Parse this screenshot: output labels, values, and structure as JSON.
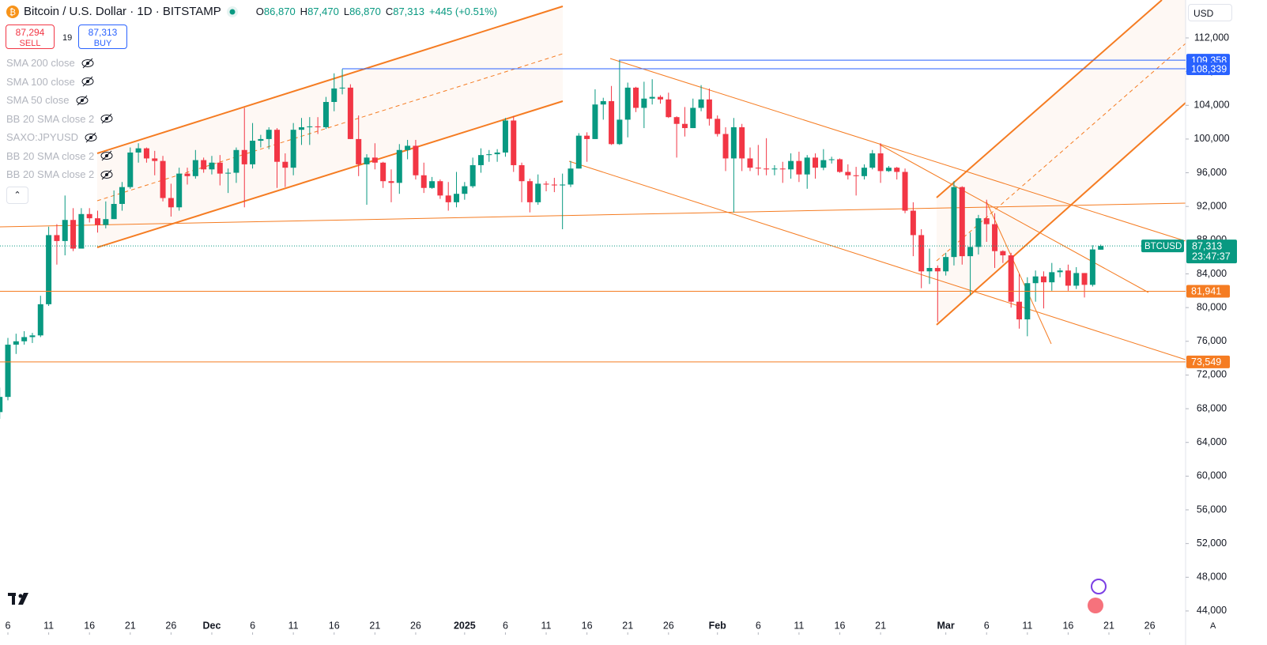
{
  "header": {
    "title": "Bitcoin / U.S. Dollar · 1D · BITSTAMP",
    "ohlc": [
      {
        "label": "O",
        "value": "86,870"
      },
      {
        "label": "H",
        "value": "87,470"
      },
      {
        "label": "L",
        "value": "86,870"
      },
      {
        "label": "C",
        "value": "87,313"
      }
    ],
    "change": "+445 (+0.51%)",
    "sell": {
      "price": "87,294",
      "label": "SELL"
    },
    "spread": "19",
    "buy": {
      "price": "87,313",
      "label": "BUY"
    },
    "currency": "USD",
    "scale_mode": "A"
  },
  "indicators": [
    "SMA 200 close",
    "SMA 100 close",
    "SMA 50 close",
    "BB 20 SMA close 2",
    "SAXO:JPYUSD",
    "BB 20 SMA close 2",
    "BB 20 SMA close 2"
  ],
  "chart_data": {
    "type": "candlestick",
    "up_color": "#089981",
    "down_color": "#f23645",
    "ylim": [
      42400,
      116500
    ],
    "yticks": [
      {
        "value": 44000,
        "label": "44,000"
      },
      {
        "value": 48000,
        "label": "48,000"
      },
      {
        "value": 52000,
        "label": "52,000"
      },
      {
        "value": 56000,
        "label": "56,000"
      },
      {
        "value": 60000,
        "label": "60,000"
      },
      {
        "value": 64000,
        "label": "64,000"
      },
      {
        "value": 68000,
        "label": "68,000"
      },
      {
        "value": 72000,
        "label": "72,000"
      },
      {
        "value": 76000,
        "label": "76,000"
      },
      {
        "value": 80000,
        "label": "80,000"
      },
      {
        "value": 84000,
        "label": "84,000"
      },
      {
        "value": 88000,
        "label": "88,000"
      },
      {
        "value": 92000,
        "label": "92,000"
      },
      {
        "value": 96000,
        "label": "96,000"
      },
      {
        "value": 100000,
        "label": "100,000"
      },
      {
        "value": 104000,
        "label": "104,000"
      },
      {
        "value": 108000,
        "label": "108,000"
      },
      {
        "value": 112000,
        "label": "112,000"
      }
    ],
    "xlim": [
      0.03,
      145.4
    ],
    "xticks": [
      {
        "value": 1,
        "label": "6"
      },
      {
        "value": 6,
        "label": "11"
      },
      {
        "value": 11,
        "label": "16"
      },
      {
        "value": 16,
        "label": "21"
      },
      {
        "value": 21,
        "label": "26"
      },
      {
        "value": 26,
        "label": "Dec"
      },
      {
        "value": 31,
        "label": "6"
      },
      {
        "value": 36,
        "label": "11"
      },
      {
        "value": 41,
        "label": "16"
      },
      {
        "value": 46,
        "label": "21"
      },
      {
        "value": 51,
        "label": "26"
      },
      {
        "value": 57,
        "label": "2025"
      },
      {
        "value": 62,
        "label": "6"
      },
      {
        "value": 67,
        "label": "11"
      },
      {
        "value": 72,
        "label": "16"
      },
      {
        "value": 77,
        "label": "21"
      },
      {
        "value": 82,
        "label": "26"
      },
      {
        "value": 88,
        "label": "Feb"
      },
      {
        "value": 93,
        "label": "6"
      },
      {
        "value": 98,
        "label": "11"
      },
      {
        "value": 103,
        "label": "16"
      },
      {
        "value": 108,
        "label": "21"
      },
      {
        "value": 116,
        "label": "Mar"
      },
      {
        "value": 121,
        "label": "6"
      },
      {
        "value": 126,
        "label": "11"
      },
      {
        "value": 131,
        "label": "16"
      },
      {
        "value": 136,
        "label": "21"
      },
      {
        "value": 141,
        "label": "26"
      }
    ],
    "open": [
      67600,
      69400,
      75600,
      76000,
      76500,
      76700,
      80400,
      88600,
      87900,
      90400,
      87000,
      91100,
      90600,
      89800,
      90500,
      92300,
      94300,
      98400,
      98900,
      97700,
      97400,
      93000,
      91900,
      95900,
      95600,
      97500,
      96400,
      97200,
      95900,
      96000,
      98700,
      97000,
      99800,
      100000,
      101100,
      97300,
      96600,
      101100,
      101400,
      101500,
      101400,
      104400,
      106000,
      106100,
      100000,
      97000,
      97800,
      97200,
      95000,
      94800,
      98700,
      99200,
      95700,
      94200,
      95000,
      93300,
      92500,
      93500,
      94400,
      96900,
      98100,
      98200,
      98400,
      102200,
      96900,
      95000,
      92500,
      94700,
      94600,
      94500,
      94600,
      96500,
      100400,
      100000,
      104100,
      104500,
      99400,
      102300,
      106100,
      103700,
      104800,
      105000,
      104700,
      102600,
      101800,
      101300,
      103700,
      104700,
      102400,
      100600,
      97700,
      101400,
      97700,
      96600,
      96500,
      96400,
      96500,
      96400,
      97400,
      95800,
      97800,
      96600,
      97500,
      97600,
      96100,
      95700,
      95600,
      96600,
      98300,
      96200,
      96600,
      96100,
      91500,
      88600,
      84300,
      84700,
      84300,
      86000,
      94300,
      86100,
      87200,
      90600,
      89900,
      86700,
      86200,
      80700,
      78600,
      82900,
      83700,
      83000,
      84200,
      84400,
      82600,
      84100,
      82700,
      86870
    ],
    "high": [
      70500,
      76400,
      76900,
      77200,
      77000,
      81400,
      89600,
      89900,
      93300,
      91800,
      91800,
      91800,
      91500,
      92600,
      93900,
      94900,
      99000,
      99500,
      99000,
      98600,
      98000,
      94700,
      96600,
      96600,
      98700,
      97800,
      98000,
      98100,
      96500,
      99000,
      103700,
      101900,
      100500,
      101400,
      101300,
      98300,
      101900,
      102500,
      102600,
      102600,
      105000,
      107800,
      108300,
      106500,
      102800,
      98200,
      99500,
      97300,
      96400,
      99400,
      99900,
      99900,
      97200,
      95500,
      95200,
      94900,
      96100,
      94900,
      97800,
      98900,
      98700,
      98800,
      102500,
      102700,
      97200,
      95300,
      95800,
      95000,
      95400,
      95900,
      97400,
      100700,
      100800,
      105900,
      104900,
      106300,
      109300,
      106700,
      106200,
      106800,
      107100,
      105200,
      105500,
      102700,
      103800,
      104800,
      106400,
      106000,
      102800,
      101400,
      102500,
      101800,
      99000,
      99300,
      100100,
      96900,
      97300,
      98300,
      98500,
      98100,
      98300,
      98800,
      97900,
      97700,
      97000,
      96700,
      97000,
      98700,
      99500,
      96800,
      96700,
      96500,
      92500,
      89300,
      87000,
      85000,
      86500,
      95000,
      94400,
      88900,
      91000,
      92800,
      91200,
      86800,
      86500,
      84000,
      83600,
      84400,
      84300,
      85300,
      84700,
      85100,
      84800,
      84100,
      87400,
      87470
    ],
    "low": [
      66800,
      69000,
      74500,
      75600,
      75800,
      76500,
      80200,
      85100,
      86200,
      86700,
      87000,
      90100,
      88900,
      89400,
      90500,
      91500,
      94100,
      97200,
      97200,
      95700,
      92600,
      90800,
      91500,
      94600,
      95300,
      96000,
      95800,
      94500,
      93600,
      94800,
      91900,
      96500,
      99000,
      98800,
      94200,
      94300,
      95700,
      99300,
      99300,
      100600,
      101200,
      103300,
      105300,
      100000,
      95600,
      92200,
      96400,
      94200,
      92500,
      93500,
      97600,
      95200,
      93600,
      94100,
      92900,
      91500,
      91900,
      92800,
      94200,
      96000,
      97300,
      97300,
      97900,
      96100,
      92500,
      91300,
      92200,
      93800,
      93700,
      89300,
      94300,
      96500,
      97300,
      100000,
      102300,
      99300,
      99300,
      100200,
      103200,
      101300,
      104100,
      104200,
      102500,
      97800,
      100300,
      101300,
      103300,
      101600,
      100300,
      96200,
      91300,
      96200,
      96200,
      95700,
      95700,
      95700,
      94800,
      95300,
      94900,
      94100,
      95300,
      96300,
      97100,
      96000,
      95200,
      93300,
      95200,
      96400,
      94800,
      96100,
      95200,
      91200,
      86100,
      82300,
      82800,
      78300,
      83800,
      85000,
      85100,
      81500,
      86300,
      87800,
      84700,
      85300,
      80000,
      77500,
      76600,
      80700,
      79900,
      82000,
      83600,
      82000,
      82200,
      81200,
      82500,
      86870
    ],
    "close": [
      69400,
      75600,
      76000,
      76500,
      76700,
      80400,
      88600,
      87900,
      90400,
      87000,
      91100,
      90600,
      89800,
      90500,
      92300,
      94300,
      98400,
      98900,
      97700,
      97400,
      93000,
      91900,
      95900,
      95600,
      97500,
      96400,
      97200,
      95900,
      96000,
      98700,
      97000,
      99800,
      100000,
      101100,
      97300,
      96600,
      101100,
      101400,
      101500,
      101400,
      104400,
      106000,
      106100,
      100000,
      97000,
      97800,
      97200,
      95000,
      94800,
      98700,
      99200,
      95700,
      94200,
      95000,
      93300,
      92500,
      93500,
      94400,
      96900,
      98100,
      98200,
      98400,
      102200,
      96900,
      95000,
      92500,
      94700,
      94600,
      94500,
      94600,
      96500,
      100400,
      100000,
      104100,
      104500,
      99400,
      102300,
      106100,
      103700,
      104800,
      105000,
      104700,
      102600,
      101800,
      101300,
      103700,
      104700,
      102400,
      100600,
      97700,
      101400,
      97700,
      96600,
      96500,
      96400,
      96500,
      96400,
      97400,
      95800,
      97800,
      96600,
      97500,
      97600,
      96100,
      95700,
      95600,
      96600,
      98300,
      96200,
      96600,
      96100,
      91500,
      88600,
      84300,
      84700,
      84300,
      86000,
      94300,
      86100,
      87200,
      90600,
      89900,
      86700,
      86200,
      80700,
      78600,
      82900,
      83700,
      83000,
      84200,
      84400,
      82600,
      84100,
      82700,
      86900,
      87313
    ],
    "price_lines": [
      {
        "value": 109358,
        "label": "109,358",
        "color": "#2962ff"
      },
      {
        "value": 108339,
        "label": "108,339",
        "color": "#2962ff"
      },
      {
        "value": 81941,
        "label": "81,941",
        "color": "#f57c22"
      },
      {
        "value": 73549,
        "label": "73,549",
        "color": "#f57c22"
      }
    ],
    "last_price": {
      "name": "BTCUSD",
      "value": 87313,
      "label": "87,313",
      "countdown": "23:47:37",
      "color": "#089981"
    }
  }
}
